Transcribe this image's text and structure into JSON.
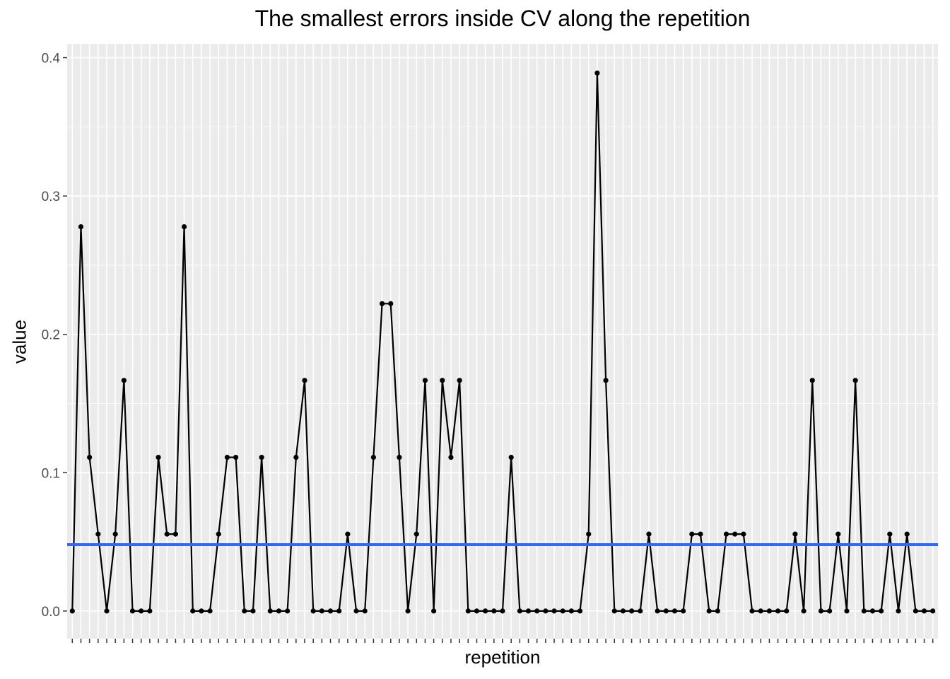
{
  "chart_data": {
    "type": "line",
    "title": "The smallest errors inside CV along the repetition",
    "xlabel": "repetition",
    "ylabel": "value",
    "ylim": [
      -0.02,
      0.41
    ],
    "yticks": [
      0.0,
      0.1,
      0.2,
      0.3,
      0.4
    ],
    "ytick_labels": [
      "0.0",
      "0.1",
      "0.2",
      "0.3",
      "0.4"
    ],
    "x_tick_labels_shown": false,
    "grid": true,
    "panel_background": "#ebebeb",
    "grid_color": "#ffffff",
    "line_color": "#000000",
    "hline": {
      "value": 0.048,
      "color": "#3366ff"
    },
    "series": [
      {
        "values": [
          0,
          0.2778,
          0.1111,
          0.0556,
          0,
          0.0556,
          0.1667,
          0,
          0,
          0,
          0.1111,
          0.0556,
          0.0556,
          0.2778,
          0,
          0,
          0,
          0.0556,
          0.1111,
          0.1111,
          0,
          0,
          0.1111,
          0,
          0,
          0,
          0.1111,
          0.1667,
          0,
          0,
          0,
          0,
          0.0556,
          0,
          0,
          0.1111,
          0.2222,
          0.2222,
          0.1111,
          0,
          0.0556,
          0.1667,
          0,
          0.1667,
          0.1111,
          0.1667,
          0,
          0,
          0,
          0,
          0,
          0.1111,
          0,
          0,
          0,
          0,
          0,
          0,
          0,
          0,
          0.0556,
          0.3889,
          0.1667,
          0,
          0,
          0,
          0,
          0.0556,
          0,
          0,
          0,
          0,
          0.0556,
          0.0556,
          0,
          0,
          0.0556,
          0.0556,
          0.0556,
          0,
          0,
          0,
          0,
          0,
          0.0556,
          0,
          0.1667,
          0,
          0,
          0.0556,
          0,
          0.1667,
          0,
          0,
          0,
          0.0556,
          0,
          0.0556,
          0,
          0,
          0
        ]
      }
    ]
  }
}
